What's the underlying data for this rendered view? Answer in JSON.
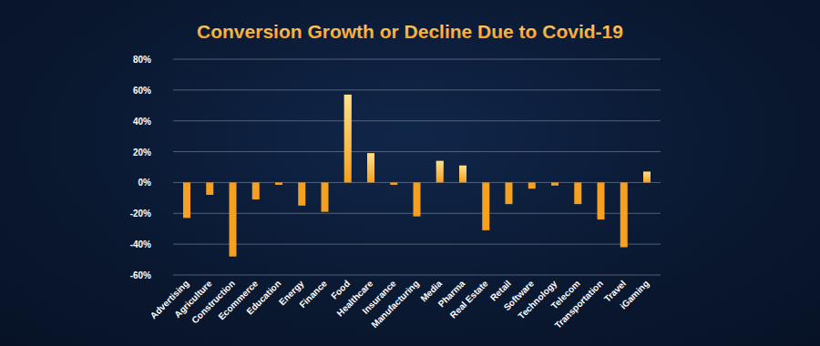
{
  "chart_data": {
    "type": "bar",
    "title": "Conversion Growth or Decline Due to Covid-19",
    "categories": [
      "Advertising",
      "Agriculture",
      "Construction",
      "Ecommerce",
      "Education",
      "Energy",
      "Finance",
      "Food",
      "Healthcare",
      "Insurance",
      "Manufacturing",
      "Media",
      "Pharma",
      "Real Estate",
      "Retail",
      "Software",
      "Technology",
      "Telecom",
      "Transportation",
      "Travel",
      "iGaming"
    ],
    "values": [
      -23,
      -8,
      -48,
      -11,
      -1.5,
      -15,
      -19,
      57,
      19,
      -1.5,
      -22,
      14,
      11,
      -31,
      -14,
      -4,
      -2,
      -14,
      -24,
      -42,
      7
    ],
    "color": "#f5a020",
    "ylim": [
      -60,
      80
    ],
    "yticks": [
      {
        "value": -60,
        "label": "-60%"
      },
      {
        "value": -40,
        "label": "-40%"
      },
      {
        "value": -20,
        "label": "-20%"
      },
      {
        "value": 0,
        "label": "0%"
      },
      {
        "value": 20,
        "label": "20%"
      },
      {
        "value": 40,
        "label": "40%"
      },
      {
        "value": 60,
        "label": "60%"
      },
      {
        "value": 80,
        "label": "80%"
      }
    ],
    "grid": true
  }
}
